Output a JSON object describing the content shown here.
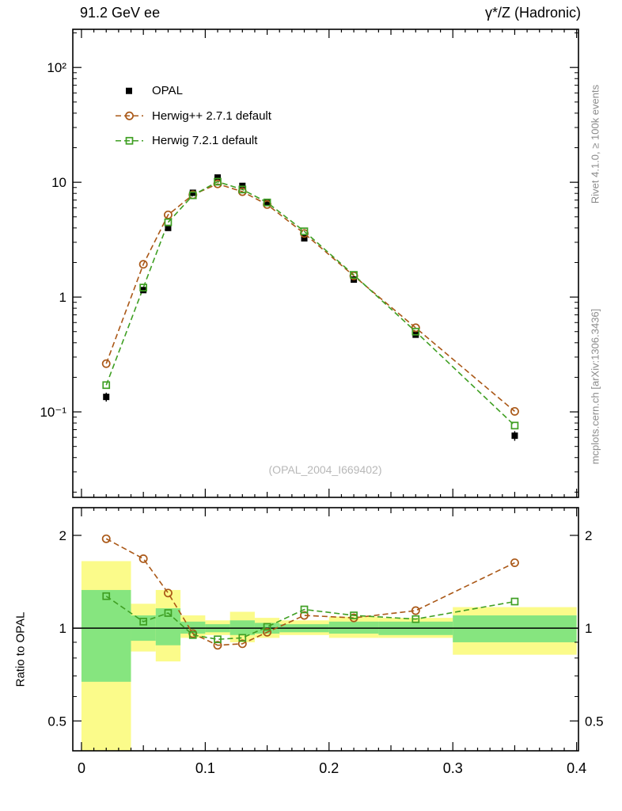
{
  "sidebar_labels": {
    "rivet": "Rivet 4.1.0, ≥ 100k events",
    "mcplots": "mcplots.cern.ch [arXiv:1306.3436]"
  },
  "chart_data": {
    "type": "line",
    "title_left": "91.2 GeV ee",
    "title_right": "γ*/Z (Hadronic)",
    "watermark": "(OPAL_2004_I669402)",
    "legend_position": "top-left",
    "grid": "off",
    "x": [
      0.02,
      0.05,
      0.07,
      0.09,
      0.11,
      0.13,
      0.15,
      0.18,
      0.22,
      0.27,
      0.35
    ],
    "xlim": [
      -0.007,
      0.4015
    ],
    "main_ylim": [
      0.018,
      215
    ],
    "yscale": "log",
    "xticks": [
      {
        "v": 0,
        "label": "0"
      },
      {
        "v": 0.1,
        "label": "0.1"
      },
      {
        "v": 0.2,
        "label": "0.2"
      },
      {
        "v": 0.3,
        "label": "0.3"
      },
      {
        "v": 0.4,
        "label": "0.4"
      }
    ],
    "main_yticks": [
      {
        "v": 100,
        "label": "10²"
      },
      {
        "v": 10,
        "label": "10"
      },
      {
        "v": 1,
        "label": "1"
      },
      {
        "v": 0.1,
        "label": "10⁻¹"
      }
    ],
    "series": [
      {
        "name": "OPAL",
        "marker": "filled-square",
        "color": "#000000",
        "line": "none",
        "values": [
          0.135,
          1.15,
          4.0,
          8.1,
          11.0,
          9.3,
          6.6,
          3.25,
          1.42,
          0.47,
          0.062
        ],
        "yerr": [
          0.012,
          0.06,
          0.18,
          0.3,
          0.38,
          0.32,
          0.22,
          0.12,
          0.06,
          0.025,
          0.006
        ]
      },
      {
        "name": "Herwig++ 2.7.1 default",
        "marker": "open-circle",
        "color": "#aa5817",
        "line": "dashed",
        "values": [
          0.263,
          1.93,
          5.2,
          7.78,
          9.68,
          8.28,
          6.4,
          3.58,
          1.53,
          0.54,
          0.101
        ]
      },
      {
        "name": "Herwig 7.2.1 default",
        "marker": "open-square",
        "color": "#3f9f23",
        "line": "dashed",
        "values": [
          0.171,
          1.21,
          4.48,
          7.7,
          10.12,
          8.65,
          6.67,
          3.74,
          1.56,
          0.5,
          0.076
        ]
      }
    ],
    "ratio": {
      "ylabel": "Ratio to OPAL",
      "ylim": [
        0.4,
        2.46
      ],
      "yscale": "log",
      "yticks": [
        {
          "v": 2,
          "label": "2"
        },
        {
          "v": 1,
          "label": "1"
        },
        {
          "v": 0.5,
          "label": "0.5"
        }
      ],
      "series": [
        {
          "name": "Herwig++ 2.7.1 default",
          "color": "#aa5817",
          "marker": "open-circle",
          "values": [
            1.95,
            1.68,
            1.3,
            0.96,
            0.88,
            0.89,
            0.97,
            1.1,
            1.08,
            1.14,
            1.63
          ]
        },
        {
          "name": "Herwig 7.2.1 default",
          "color": "#3f9f23",
          "marker": "open-square",
          "values": [
            1.27,
            1.05,
            1.12,
            0.95,
            0.92,
            0.93,
            1.01,
            1.15,
            1.1,
            1.07,
            1.22
          ]
        }
      ],
      "bands": {
        "edges": [
          0,
          0.04,
          0.06,
          0.08,
          0.1,
          0.12,
          0.14,
          0.16,
          0.2,
          0.24,
          0.3,
          0.4
        ],
        "yellow_lo": [
          0.35,
          0.84,
          0.78,
          0.93,
          0.95,
          0.9,
          0.93,
          0.95,
          0.93,
          0.93,
          0.82
        ],
        "yellow_hi": [
          1.65,
          1.2,
          1.33,
          1.1,
          1.06,
          1.13,
          1.08,
          1.06,
          1.09,
          1.08,
          1.17
        ],
        "green_lo": [
          0.67,
          0.91,
          0.88,
          0.96,
          0.97,
          0.95,
          0.96,
          0.97,
          0.96,
          0.95,
          0.9
        ],
        "green_hi": [
          1.33,
          1.1,
          1.16,
          1.05,
          1.03,
          1.06,
          1.04,
          1.03,
          1.05,
          1.05,
          1.1
        ],
        "yellow_color": "#fbfb8a",
        "green_color": "#86e57f"
      }
    }
  }
}
